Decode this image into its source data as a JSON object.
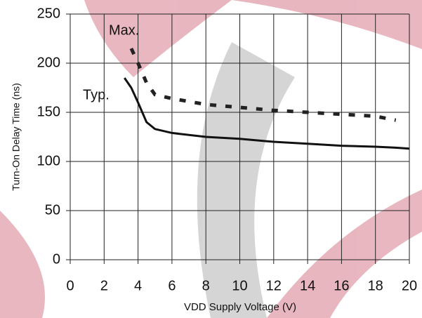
{
  "chart_data": {
    "type": "line",
    "x_label": "VDD Supply Voltage (V)",
    "y_label": "Turn-On Delay Time (ns)",
    "annotations": [
      "Max.",
      "Typ."
    ],
    "x": [
      3.2,
      3.6,
      4,
      4.5,
      5,
      6,
      8,
      10,
      12,
      14,
      16,
      18,
      19.2,
      20
    ],
    "series": [
      {
        "name": "Typ.",
        "color": "#111111",
        "style": "solid",
        "values": [
          185,
          175,
          160,
          140,
          133,
          129,
          125,
          123,
          120,
          118,
          116,
          115,
          114,
          113
        ]
      },
      {
        "name": "Max.",
        "color": "#222222",
        "style": "dashed",
        "values": [
          null,
          215,
          200,
          180,
          168,
          164,
          158,
          155,
          152,
          150,
          148,
          146,
          142,
          null
        ]
      }
    ],
    "xlim": [
      0,
      20
    ],
    "xticks": [
      0,
      2,
      4,
      6,
      8,
      10,
      12,
      14,
      16,
      18,
      20
    ],
    "ylim": [
      0,
      250
    ],
    "yticks": [
      0,
      50,
      100,
      150,
      200,
      250
    ],
    "grid": true
  }
}
